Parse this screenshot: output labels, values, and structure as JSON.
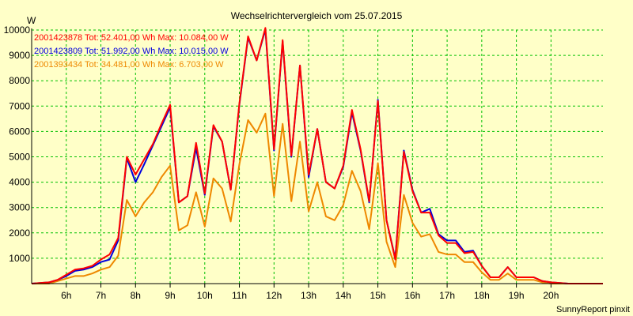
{
  "chart_data": {
    "type": "line",
    "title": "Wechselrichtervergleich vom 25.07.2015",
    "ylabel": "W",
    "xlabel": "",
    "ylim": [
      0,
      10000
    ],
    "xlim": [
      5.0,
      21.5
    ],
    "grid": true,
    "yticks": [
      1000,
      2000,
      3000,
      4000,
      5000,
      6000,
      7000,
      8000,
      9000,
      10000
    ],
    "xticks": [
      6,
      7,
      8,
      9,
      10,
      11,
      12,
      13,
      14,
      15,
      16,
      17,
      18,
      19,
      20
    ],
    "xtick_labels": [
      "6h",
      "7h",
      "8h",
      "9h",
      "10h",
      "11h",
      "12h",
      "13h",
      "14h",
      "15h",
      "16h",
      "17h",
      "18h",
      "19h",
      "20h"
    ],
    "legend_position": "top-left",
    "series": [
      {
        "name": "2001423878 Tot: 52.401,00 Wh Max: 10.084,00 W",
        "color": "#ff0000",
        "x": [
          5.0,
          5.5,
          5.75,
          6.0,
          6.25,
          6.5,
          6.75,
          7.0,
          7.25,
          7.5,
          7.75,
          8.0,
          8.25,
          8.5,
          8.75,
          9.0,
          9.25,
          9.5,
          9.75,
          10.0,
          10.25,
          10.5,
          10.75,
          11.0,
          11.25,
          11.5,
          11.75,
          12.0,
          12.25,
          12.5,
          12.75,
          13.0,
          13.25,
          13.5,
          13.75,
          14.0,
          14.25,
          14.5,
          14.75,
          15.0,
          15.25,
          15.5,
          15.75,
          16.0,
          16.25,
          16.5,
          16.75,
          17.0,
          17.25,
          17.5,
          17.75,
          18.0,
          18.25,
          18.5,
          18.75,
          19.0,
          19.25,
          19.5,
          19.75,
          20.0,
          20.5,
          21.0,
          21.5
        ],
        "values": [
          0,
          50,
          150,
          350,
          550,
          600,
          700,
          950,
          1150,
          1800,
          5000,
          4300,
          4900,
          5500,
          6300,
          7050,
          3200,
          3450,
          5550,
          3550,
          6250,
          5600,
          3700,
          7100,
          9750,
          8800,
          10084,
          5300,
          9600,
          5050,
          8600,
          4300,
          6100,
          4000,
          3750,
          4650,
          6850,
          5300,
          3250,
          7200,
          2500,
          950,
          5200,
          3650,
          2800,
          2800,
          1900,
          1600,
          1600,
          1200,
          1250,
          700,
          250,
          250,
          650,
          250,
          250,
          250,
          100,
          50,
          0,
          0,
          0
        ]
      },
      {
        "name": "2001423809 Tot: 51.992,00 Wh Max: 10.015,00 W",
        "color": "#0000dd",
        "x": [
          5.0,
          5.5,
          5.75,
          6.0,
          6.25,
          6.5,
          6.75,
          7.0,
          7.25,
          7.5,
          7.75,
          8.0,
          8.25,
          8.5,
          8.75,
          9.0,
          9.25,
          9.5,
          9.75,
          10.0,
          10.25,
          10.5,
          10.75,
          11.0,
          11.25,
          11.5,
          11.75,
          12.0,
          12.25,
          12.5,
          12.75,
          13.0,
          13.25,
          13.5,
          13.75,
          14.0,
          14.25,
          14.5,
          14.75,
          15.0,
          15.25,
          15.5,
          15.75,
          16.0,
          16.25,
          16.5,
          16.75,
          17.0,
          17.25,
          17.5,
          17.75,
          18.0,
          18.25,
          18.5,
          18.75,
          19.0,
          19.25,
          19.5,
          19.75,
          20.0,
          20.5,
          21.0,
          21.5
        ],
        "values": [
          0,
          50,
          150,
          300,
          500,
          550,
          650,
          850,
          950,
          1700,
          4950,
          4000,
          4700,
          5450,
          6200,
          6950,
          3200,
          3450,
          5350,
          3500,
          6200,
          5600,
          3700,
          7050,
          9700,
          8800,
          10015,
          5250,
          9550,
          5000,
          8600,
          4200,
          6100,
          4000,
          3750,
          4600,
          6750,
          5250,
          3200,
          7250,
          2500,
          1000,
          5250,
          3700,
          2800,
          2950,
          1950,
          1700,
          1700,
          1250,
          1300,
          700,
          250,
          250,
          650,
          250,
          250,
          250,
          100,
          50,
          0,
          0,
          0
        ]
      },
      {
        "name": "2001393434 Tot: 34.481,00 Wh Max: 6.703,00 W",
        "color": "#ee8800",
        "x": [
          5.0,
          5.5,
          5.75,
          6.0,
          6.25,
          6.5,
          6.75,
          7.0,
          7.25,
          7.5,
          7.75,
          8.0,
          8.25,
          8.5,
          8.75,
          9.0,
          9.25,
          9.5,
          9.75,
          10.0,
          10.25,
          10.5,
          10.75,
          11.0,
          11.25,
          11.5,
          11.75,
          12.0,
          12.25,
          12.5,
          12.75,
          13.0,
          13.25,
          13.5,
          13.75,
          14.0,
          14.25,
          14.5,
          14.75,
          15.0,
          15.25,
          15.5,
          15.75,
          16.0,
          16.25,
          16.5,
          16.75,
          17.0,
          17.25,
          17.5,
          17.75,
          18.0,
          18.25,
          18.5,
          18.75,
          19.0,
          19.25,
          19.5,
          19.75,
          20.0,
          20.5,
          21.0,
          21.5
        ],
        "values": [
          0,
          0,
          100,
          200,
          300,
          300,
          400,
          550,
          650,
          1100,
          3300,
          2650,
          3200,
          3600,
          4200,
          4650,
          2100,
          2300,
          3600,
          2250,
          4150,
          3750,
          2450,
          4700,
          6450,
          5950,
          6703,
          3450,
          6300,
          3250,
          5600,
          2850,
          4000,
          2650,
          2500,
          3100,
          4450,
          3650,
          2150,
          4750,
          1650,
          650,
          3500,
          2400,
          1850,
          1950,
          1250,
          1150,
          1150,
          850,
          850,
          450,
          150,
          150,
          400,
          150,
          150,
          150,
          50,
          0,
          0,
          0,
          0
        ]
      }
    ]
  },
  "footer": {
    "text": "SunnyReport pinxit"
  }
}
